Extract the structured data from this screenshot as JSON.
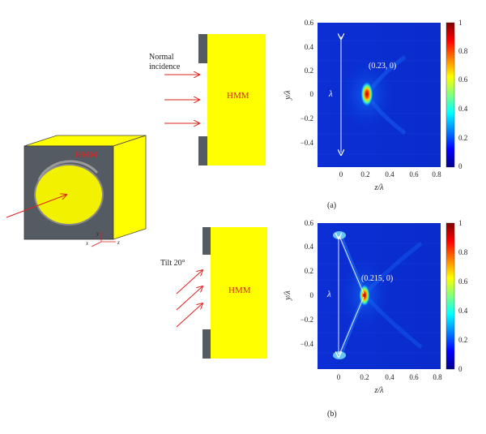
{
  "colors": {
    "hmm_fill": "#ffff00",
    "metal": "#555b63",
    "arrow": "#e0201c",
    "label_red": "#e0201c"
  },
  "cube": {
    "label": "HMM",
    "axes": [
      "x",
      "y",
      "z"
    ]
  },
  "row_a": {
    "incidence_label_line1": "Normal",
    "incidence_label_line2": "incidence",
    "block_label": "HMM",
    "panel_label": "(a)",
    "map": {
      "peak_label": "(0.23, 0)",
      "lambda_label": "λ",
      "xlabel": "z/λ",
      "ylabel": "y/λ",
      "xticks": [
        "0",
        "0.2",
        "0.4",
        "0.6",
        "0.8"
      ],
      "yticks": [
        "0.6",
        "0.4",
        "0.2",
        "0",
        "−0.2",
        "−0.4"
      ],
      "colorbar_ticks": [
        "1",
        "0.8",
        "0.6",
        "0.4",
        "0.2",
        "0"
      ],
      "peak": {
        "z": 0.23,
        "y": 0
      }
    }
  },
  "row_b": {
    "incidence_label": "Tilt 20°",
    "block_label": "HMM",
    "panel_label": "(b)",
    "map": {
      "peak_label": "(0.215, 0)",
      "lambda_label": "λ",
      "xlabel": "z/λ",
      "ylabel": "y/λ",
      "xticks": [
        "0",
        "0.2",
        "0.4",
        "0.6",
        "0.8"
      ],
      "yticks": [
        "0.6",
        "0.4",
        "0.2",
        "0",
        "−0.2",
        "−0.4"
      ],
      "colorbar_ticks": [
        "1",
        "0.8",
        "0.6",
        "0.4",
        "0.2",
        "0"
      ],
      "peak": {
        "z": 0.215,
        "y": 0
      }
    }
  }
}
